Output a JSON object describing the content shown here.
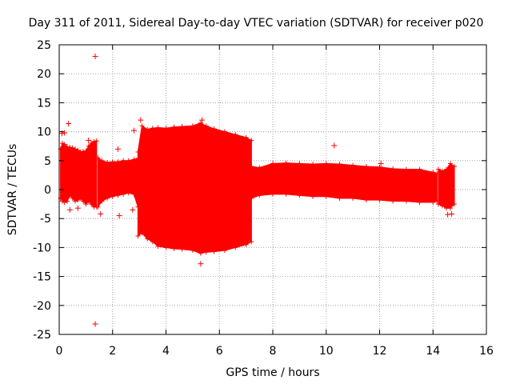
{
  "chart_data": {
    "type": "scatter",
    "title": "Day 311 of 2011, Sidereal Day-to-day VTEC variation (SDTVAR) for receiver p020",
    "xlabel": "GPS time / hours",
    "ylabel": "SDTVAR / TECUs",
    "xlim": [
      0,
      16
    ],
    "ylim": [
      -25,
      25
    ],
    "x_ticks": [
      "0",
      "2",
      "4",
      "6",
      "8",
      "10",
      "12",
      "14",
      "16"
    ],
    "y_ticks": [
      "-25",
      "-20",
      "-15",
      "-10",
      "-5",
      "0",
      "5",
      "10",
      "15",
      "20",
      "25"
    ],
    "grid": true,
    "marker": "+",
    "color": "#ff0000",
    "series": [
      {
        "name": "SDTVAR",
        "segments": [
          {
            "x": [
              0.05,
              0.12,
              0.2,
              0.3,
              0.4,
              0.5,
              0.6,
              0.7,
              0.8,
              0.9,
              1.0,
              1.1,
              1.2,
              1.3,
              1.4
            ],
            "upper": [
              7.0,
              8.0,
              7.8,
              7.4,
              7.3,
              7.2,
              7.0,
              6.8,
              6.5,
              6.6,
              6.7,
              7.5,
              8.0,
              8.3,
              8.4
            ],
            "lower": [
              -1.5,
              -2.0,
              -2.2,
              -2.0,
              -1.0,
              -1.5,
              -2.0,
              -1.8,
              -1.5,
              -2.0,
              -2.5,
              -2.0,
              -2.5,
              -3.0,
              -3.0
            ]
          },
          {
            "x": [
              1.45,
              1.6,
              1.8,
              2.0,
              2.2,
              2.4,
              2.6,
              2.8,
              2.95
            ],
            "upper": [
              5.5,
              5.0,
              4.7,
              4.8,
              4.8,
              5.0,
              5.0,
              5.2,
              5.4
            ],
            "lower": [
              -3.0,
              -2.0,
              -1.5,
              -1.2,
              -1.0,
              -0.8,
              -0.6,
              -0.8,
              -3.0
            ]
          },
          {
            "x": [
              2.95,
              3.1,
              3.3,
              3.5,
              3.7,
              4.0,
              4.3,
              4.6,
              5.0,
              5.3,
              5.5,
              5.8,
              6.2,
              6.6,
              7.0,
              7.2
            ],
            "upper": [
              6.5,
              11.0,
              10.4,
              10.6,
              10.7,
              10.6,
              10.8,
              10.9,
              11.0,
              11.5,
              11.0,
              10.5,
              10.0,
              9.5,
              9.0,
              8.5
            ],
            "lower": [
              -8.0,
              -7.5,
              -8.5,
              -9.0,
              -9.8,
              -10.0,
              -10.2,
              -10.3,
              -10.5,
              -11.0,
              -10.8,
              -10.7,
              -10.5,
              -10.0,
              -9.5,
              -9.0
            ]
          },
          {
            "x": [
              7.2,
              7.5,
              8.0,
              8.5,
              9.0,
              9.5,
              10.0,
              10.5,
              11.0,
              11.5,
              12.0,
              12.5,
              13.0,
              13.5,
              14.0,
              14.15
            ],
            "upper": [
              4.0,
              3.8,
              4.5,
              4.6,
              4.5,
              4.4,
              4.5,
              4.4,
              4.2,
              4.0,
              3.9,
              3.6,
              3.5,
              3.5,
              3.0,
              2.8
            ],
            "lower": [
              -1.5,
              -1.0,
              -0.8,
              -0.8,
              -1.0,
              -1.2,
              -1.2,
              -1.5,
              -1.5,
              -1.8,
              -1.8,
              -2.0,
              -2.0,
              -2.2,
              -2.2,
              -2.0
            ]
          },
          {
            "x": [
              14.2,
              14.35,
              14.5,
              14.65,
              14.8
            ],
            "upper": [
              3.5,
              3.2,
              3.5,
              4.5,
              4.0
            ],
            "lower": [
              -2.5,
              -2.8,
              -3.2,
              -3.2,
              -2.5
            ]
          }
        ],
        "outliers": [
          {
            "x": 1.35,
            "y": 23.0
          },
          {
            "x": 1.35,
            "y": -23.2
          },
          {
            "x": 0.35,
            "y": 11.4
          },
          {
            "x": 0.1,
            "y": 9.7
          },
          {
            "x": 0.2,
            "y": 9.8
          },
          {
            "x": 1.1,
            "y": 8.5
          },
          {
            "x": 2.2,
            "y": 7.0
          },
          {
            "x": 2.25,
            "y": -4.5
          },
          {
            "x": 2.8,
            "y": 10.2
          },
          {
            "x": 2.75,
            "y": -3.5
          },
          {
            "x": 3.05,
            "y": 12.0
          },
          {
            "x": 5.35,
            "y": 12.0
          },
          {
            "x": 5.3,
            "y": -12.8
          },
          {
            "x": 10.3,
            "y": 7.6
          },
          {
            "x": 12.05,
            "y": 4.5
          },
          {
            "x": 0.4,
            "y": -3.5
          },
          {
            "x": 0.7,
            "y": -3.2
          },
          {
            "x": 1.55,
            "y": -4.2
          },
          {
            "x": 14.55,
            "y": -4.3
          },
          {
            "x": 14.7,
            "y": -4.2
          }
        ]
      }
    ]
  }
}
